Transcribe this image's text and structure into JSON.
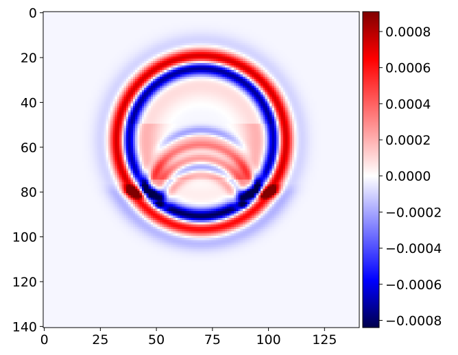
{
  "chart_data": {
    "type": "heatmap",
    "title": "",
    "xlabel": "",
    "ylabel": "",
    "grid": false,
    "colormap": "seismic",
    "colormap_stops": [
      "#00004c",
      "#0000ff",
      "#ffffff",
      "#ff0000",
      "#800000"
    ],
    "x_range": [
      0,
      140
    ],
    "y_range": [
      0,
      140
    ],
    "y_inverted": true,
    "x_ticks": [
      0,
      25,
      50,
      75,
      100,
      125
    ],
    "x_tick_labels": [
      "0",
      "25",
      "50",
      "75",
      "100",
      "125"
    ],
    "y_ticks": [
      0,
      20,
      40,
      60,
      80,
      100,
      120,
      140
    ],
    "y_tick_labels": [
      "0",
      "20",
      "40",
      "60",
      "80",
      "100",
      "120",
      "140"
    ],
    "colorbar": {
      "range": [
        -0.00084,
        0.00091
      ],
      "ticks": [
        0.0008,
        0.0006,
        0.0004,
        0.0002,
        0.0,
        -0.0002,
        -0.0004,
        -0.0006,
        -0.0008
      ],
      "tick_labels": [
        "0.0008",
        "0.0006",
        "0.0004",
        "0.0002",
        "0.0000",
        "−0.0002",
        "−0.0004",
        "−0.0006",
        "−0.0008"
      ]
    },
    "background_value": -2e-05,
    "wavefield": {
      "center": [
        70,
        57
      ],
      "outer_ring": {
        "radius": 37.5,
        "width": 2.6,
        "amplitude": 0.00088
      },
      "inner_ring": {
        "radius": 32.5,
        "width": 2.3,
        "amplitude": -0.00086
      },
      "halo": {
        "radius": 42,
        "width": 4,
        "amplitude": -0.00012
      },
      "inner_glow": {
        "radius": 25,
        "width": 5,
        "amplitude": 0.00022
      },
      "arcs": [
        {
          "cy": 83,
          "r": 28,
          "width": 1.6,
          "amplitude": 0.00022
        },
        {
          "cy": 78,
          "r": 25,
          "width": 1.6,
          "amplitude": -0.00028
        },
        {
          "cy": 82,
          "r": 23,
          "width": 1.6,
          "amplitude": 0.00035
        },
        {
          "cy": 85,
          "r": 20,
          "width": 1.6,
          "amplitude": 0.00028
        },
        {
          "cy": 88,
          "r": 19,
          "width": 1.6,
          "amplitude": -0.00022
        },
        {
          "cy": 88,
          "r": 16,
          "width": 1.6,
          "amplitude": 0.0002
        }
      ],
      "lower_reflection": {
        "center": [
          70,
          60
        ],
        "red_radius": 36.5,
        "blue_radius": 31,
        "y_from": 76,
        "amplitude_red": 0.00086,
        "amplitude_blue": -0.00088
      }
    }
  }
}
